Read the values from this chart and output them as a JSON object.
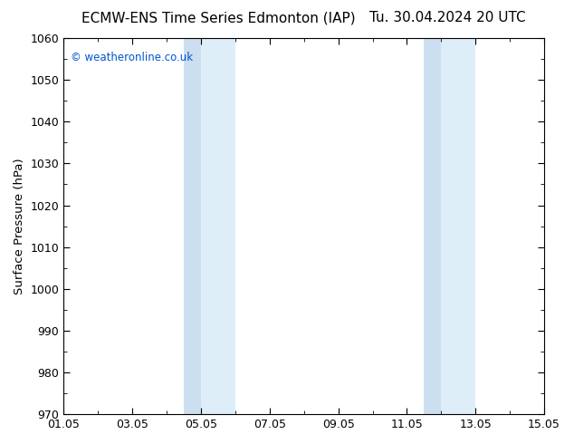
{
  "title_left": "ECMW-ENS Time Series Edmonton (IAP)",
  "title_right": "Tu. 30.04.2024 20 UTC",
  "ylabel": "Surface Pressure (hPa)",
  "xlabel": "",
  "ylim": [
    970,
    1060
  ],
  "yticks": [
    970,
    980,
    990,
    1000,
    1010,
    1020,
    1030,
    1040,
    1050,
    1060
  ],
  "x_tick_labels": [
    "01.05",
    "03.05",
    "05.05",
    "07.05",
    "09.05",
    "11.05",
    "13.05",
    "15.05"
  ],
  "x_tick_positions": [
    0,
    2,
    4,
    6,
    8,
    10,
    12,
    14
  ],
  "xlim": [
    0,
    14
  ],
  "shade_bands": [
    {
      "xmin": 3.5,
      "xmax": 4.0,
      "color": "#ccdff0"
    },
    {
      "xmin": 4.0,
      "xmax": 5.0,
      "color": "#ddeef8"
    },
    {
      "xmin": 10.5,
      "xmax": 11.0,
      "color": "#ccdff0"
    },
    {
      "xmin": 11.0,
      "xmax": 12.0,
      "color": "#ddeef8"
    }
  ],
  "background_color": "#ffffff",
  "plot_bg_color": "#ffffff",
  "copyright_text": "© weatheronline.co.uk",
  "copyright_color": "#0055cc",
  "title_fontsize": 11,
  "axis_label_fontsize": 9.5,
  "tick_fontsize": 9
}
